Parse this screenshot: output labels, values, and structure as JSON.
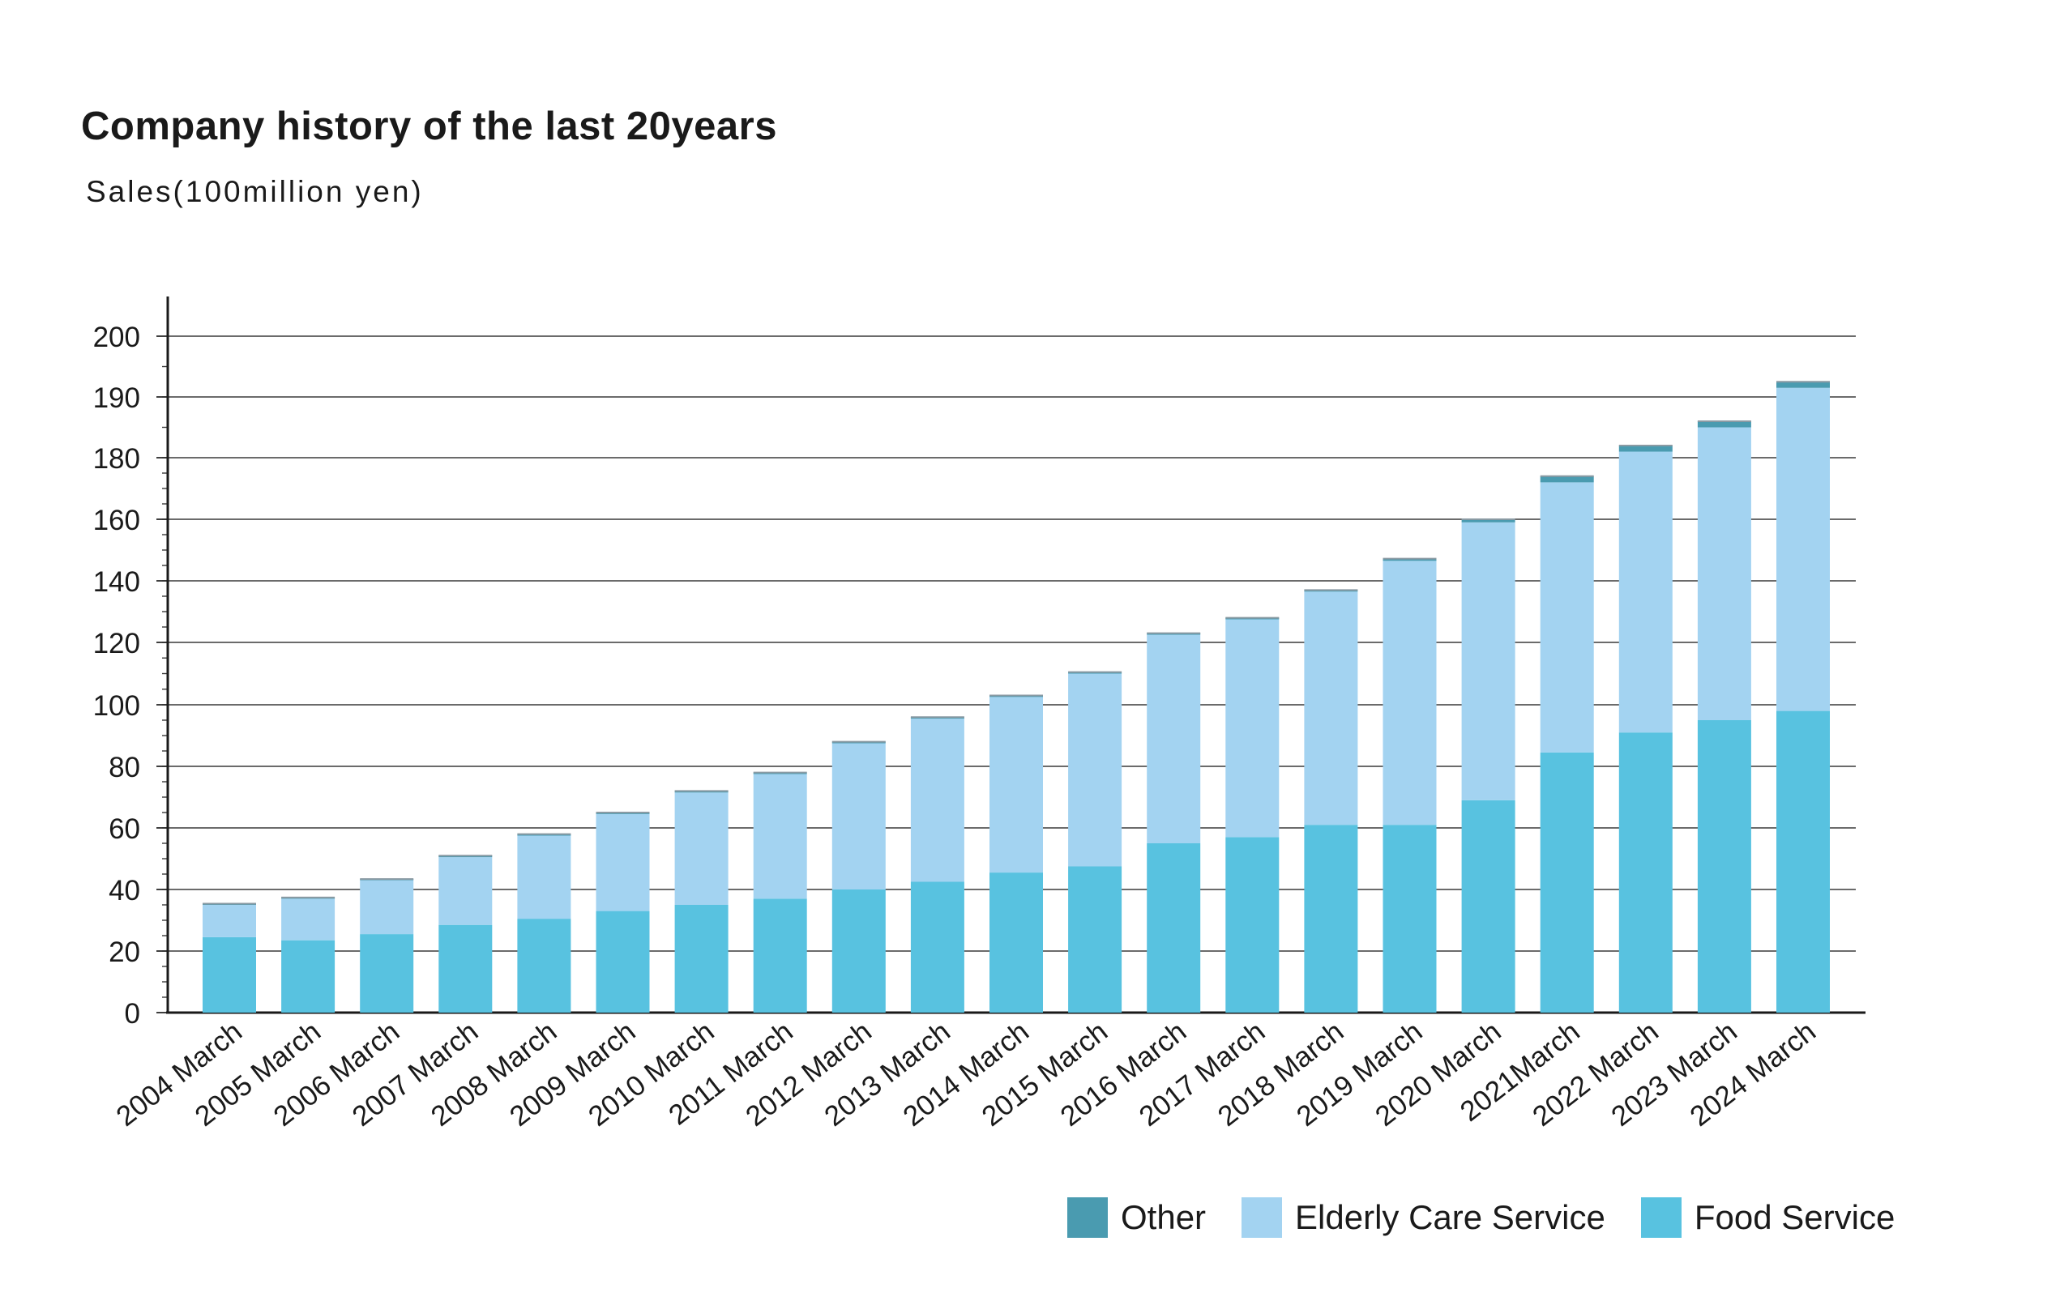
{
  "header": {
    "title": "Company history of the last 20years",
    "subtitle": "Sales(100million yen)"
  },
  "legend": {
    "items": [
      {
        "label": "Other",
        "color": "#4a9bb0"
      },
      {
        "label": "Elderly Care Service",
        "color": "#a3d3f1"
      },
      {
        "label": "Food Service",
        "color": "#58c2e0"
      }
    ]
  },
  "chart_data": {
    "type": "bar",
    "stacked": true,
    "title": "Company history of the last 20years",
    "ylabel": "Sales(100million yen)",
    "xlabel": "",
    "ylim": [
      0,
      200
    ],
    "y_ticks": [
      0,
      20,
      40,
      60,
      80,
      100,
      120,
      140,
      160,
      180,
      190,
      200
    ],
    "y_tick_values": [
      0,
      20,
      40,
      60,
      80,
      100,
      120,
      140,
      160,
      180,
      190,
      200
    ],
    "grid": true,
    "legend_position": "bottom-right",
    "categories": [
      "2004 March",
      "2005 March",
      "2006 March",
      "2007 March",
      "2008 March",
      "2009 March",
      "2010 March",
      "2011 March",
      "2012 March",
      "2013 March",
      "2014 March",
      "2015 March",
      "2016 March",
      "2017 March",
      "2018 March",
      "2019 March",
      "2020 March",
      "2021March",
      "2022 March",
      "2023 March",
      "2024 March"
    ],
    "series": [
      {
        "name": "Food Service",
        "color": "#58c2e0",
        "values": [
          24.5,
          23.5,
          25.5,
          28.5,
          30.5,
          33,
          35,
          37,
          40,
          42.5,
          45.5,
          47.5,
          55,
          57,
          61,
          61,
          69,
          84.5,
          91,
          95,
          98
        ]
      },
      {
        "name": "Elderly Care Service",
        "color": "#a3d3f1",
        "values": [
          10.5,
          13.5,
          17.5,
          22,
          27,
          31.5,
          36.5,
          40.5,
          47.5,
          53,
          57,
          62.5,
          67.5,
          70.5,
          75.5,
          85.5,
          90,
          87.5,
          90,
          90,
          93.5
        ]
      },
      {
        "name": "Other",
        "color": "#4a9bb0",
        "values": [
          0.4,
          0.4,
          0.4,
          0.5,
          0.5,
          0.5,
          0.5,
          0.5,
          0.5,
          0.5,
          0.5,
          0.5,
          0.5,
          0.5,
          0.5,
          0.7,
          1.0,
          2.0,
          1.0,
          1.0,
          1.0
        ]
      }
    ]
  }
}
